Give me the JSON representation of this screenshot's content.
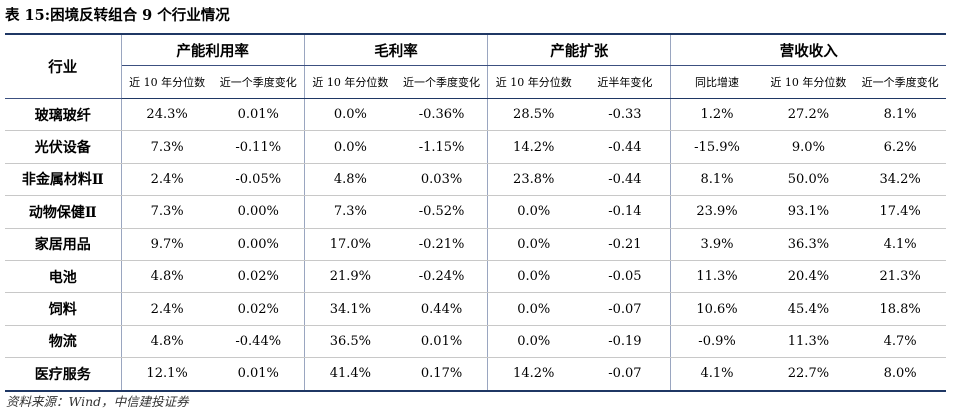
{
  "title": "表 15:困境反转组合 9 个行业情况",
  "source": "资料来源：Wind，中信建投证券",
  "table": {
    "industry_header": "行业",
    "groups": [
      {
        "label": "产能利用率",
        "cols": [
          "近 10 年分位数",
          "近一个季度变化"
        ]
      },
      {
        "label": "毛利率",
        "cols": [
          "近 10 年分位数",
          "近一个季度变化"
        ]
      },
      {
        "label": "产能扩张",
        "cols": [
          "近 10 年分位数",
          "近半年变化"
        ]
      },
      {
        "label": "营收收入",
        "cols": [
          "同比增速",
          "近 10 年分位数",
          "近一个季度变化"
        ]
      }
    ],
    "rows": [
      {
        "industry": "玻璃玻纤",
        "values": [
          "24.3%",
          "0.01%",
          "0.0%",
          "-0.36%",
          "28.5%",
          "-0.33",
          "1.2%",
          "27.2%",
          "8.1%"
        ]
      },
      {
        "industry": "光伏设备",
        "values": [
          "7.3%",
          "-0.11%",
          "0.0%",
          "-1.15%",
          "14.2%",
          "-0.44",
          "-15.9%",
          "9.0%",
          "6.2%"
        ]
      },
      {
        "industry": "非金属材料Ⅱ",
        "values": [
          "2.4%",
          "-0.05%",
          "4.8%",
          "0.03%",
          "23.8%",
          "-0.44",
          "8.1%",
          "50.0%",
          "34.2%"
        ]
      },
      {
        "industry": "动物保健Ⅱ",
        "values": [
          "7.3%",
          "0.00%",
          "7.3%",
          "-0.52%",
          "0.0%",
          "-0.14",
          "23.9%",
          "93.1%",
          "17.4%"
        ]
      },
      {
        "industry": "家居用品",
        "values": [
          "9.7%",
          "0.00%",
          "17.0%",
          "-0.21%",
          "0.0%",
          "-0.21",
          "3.9%",
          "36.3%",
          "4.1%"
        ]
      },
      {
        "industry": "电池",
        "values": [
          "4.8%",
          "0.02%",
          "21.9%",
          "-0.24%",
          "0.0%",
          "-0.05",
          "11.3%",
          "20.4%",
          "21.3%"
        ]
      },
      {
        "industry": "饲料",
        "values": [
          "2.4%",
          "0.02%",
          "34.1%",
          "0.44%",
          "0.0%",
          "-0.07",
          "10.6%",
          "45.4%",
          "18.8%"
        ]
      },
      {
        "industry": "物流",
        "values": [
          "4.8%",
          "-0.44%",
          "36.5%",
          "0.01%",
          "0.0%",
          "-0.19",
          "-0.9%",
          "11.3%",
          "4.7%"
        ]
      },
      {
        "industry": "医疗服务",
        "values": [
          "12.1%",
          "0.01%",
          "41.4%",
          "0.17%",
          "14.2%",
          "-0.07",
          "4.1%",
          "22.7%",
          "8.0%"
        ]
      }
    ]
  }
}
